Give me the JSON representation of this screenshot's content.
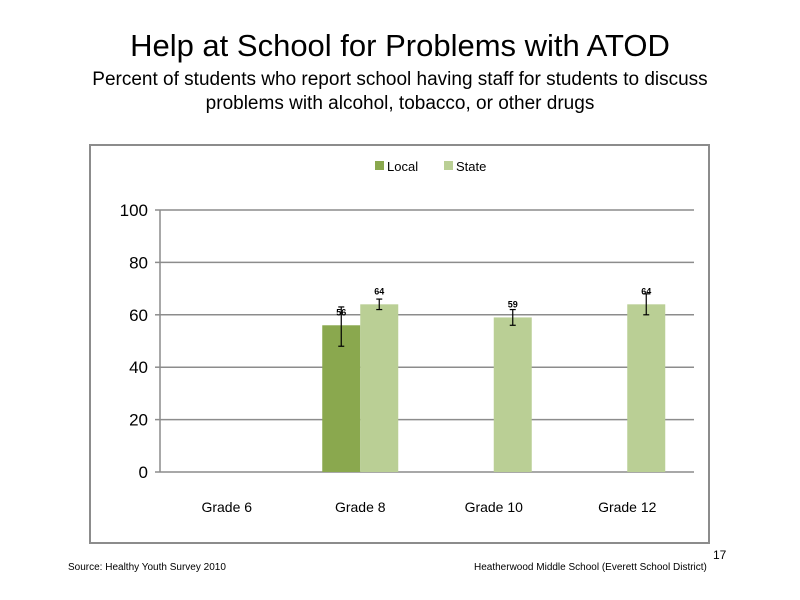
{
  "slide": {
    "title": "Help at School for Problems with ATOD",
    "subtitle": "Percent of students who report school having staff for students to discuss problems with alcohol, tobacco, or other drugs",
    "source": "Source: Healthy Youth Survey 2010",
    "school": "Heatherwood Middle  School (Everett School District)",
    "page_number": "17"
  },
  "chart_data": {
    "type": "bar",
    "categories": [
      "Grade 6",
      "Grade 8",
      "Grade 10",
      "Grade 12"
    ],
    "series": [
      {
        "name": "Local",
        "color": "#8aa84e",
        "values": [
          null,
          56,
          null,
          null
        ],
        "error": [
          null,
          [
            48,
            63
          ],
          null,
          null
        ]
      },
      {
        "name": "State",
        "color": "#bacf95",
        "values": [
          null,
          64,
          59,
          64
        ],
        "error": [
          null,
          [
            62,
            66
          ],
          [
            56,
            62
          ],
          [
            60,
            68
          ]
        ]
      }
    ],
    "ylim": [
      0,
      100
    ],
    "yticks": [
      0,
      20,
      40,
      60,
      80,
      100
    ],
    "grid": true,
    "legend": "top-center"
  }
}
